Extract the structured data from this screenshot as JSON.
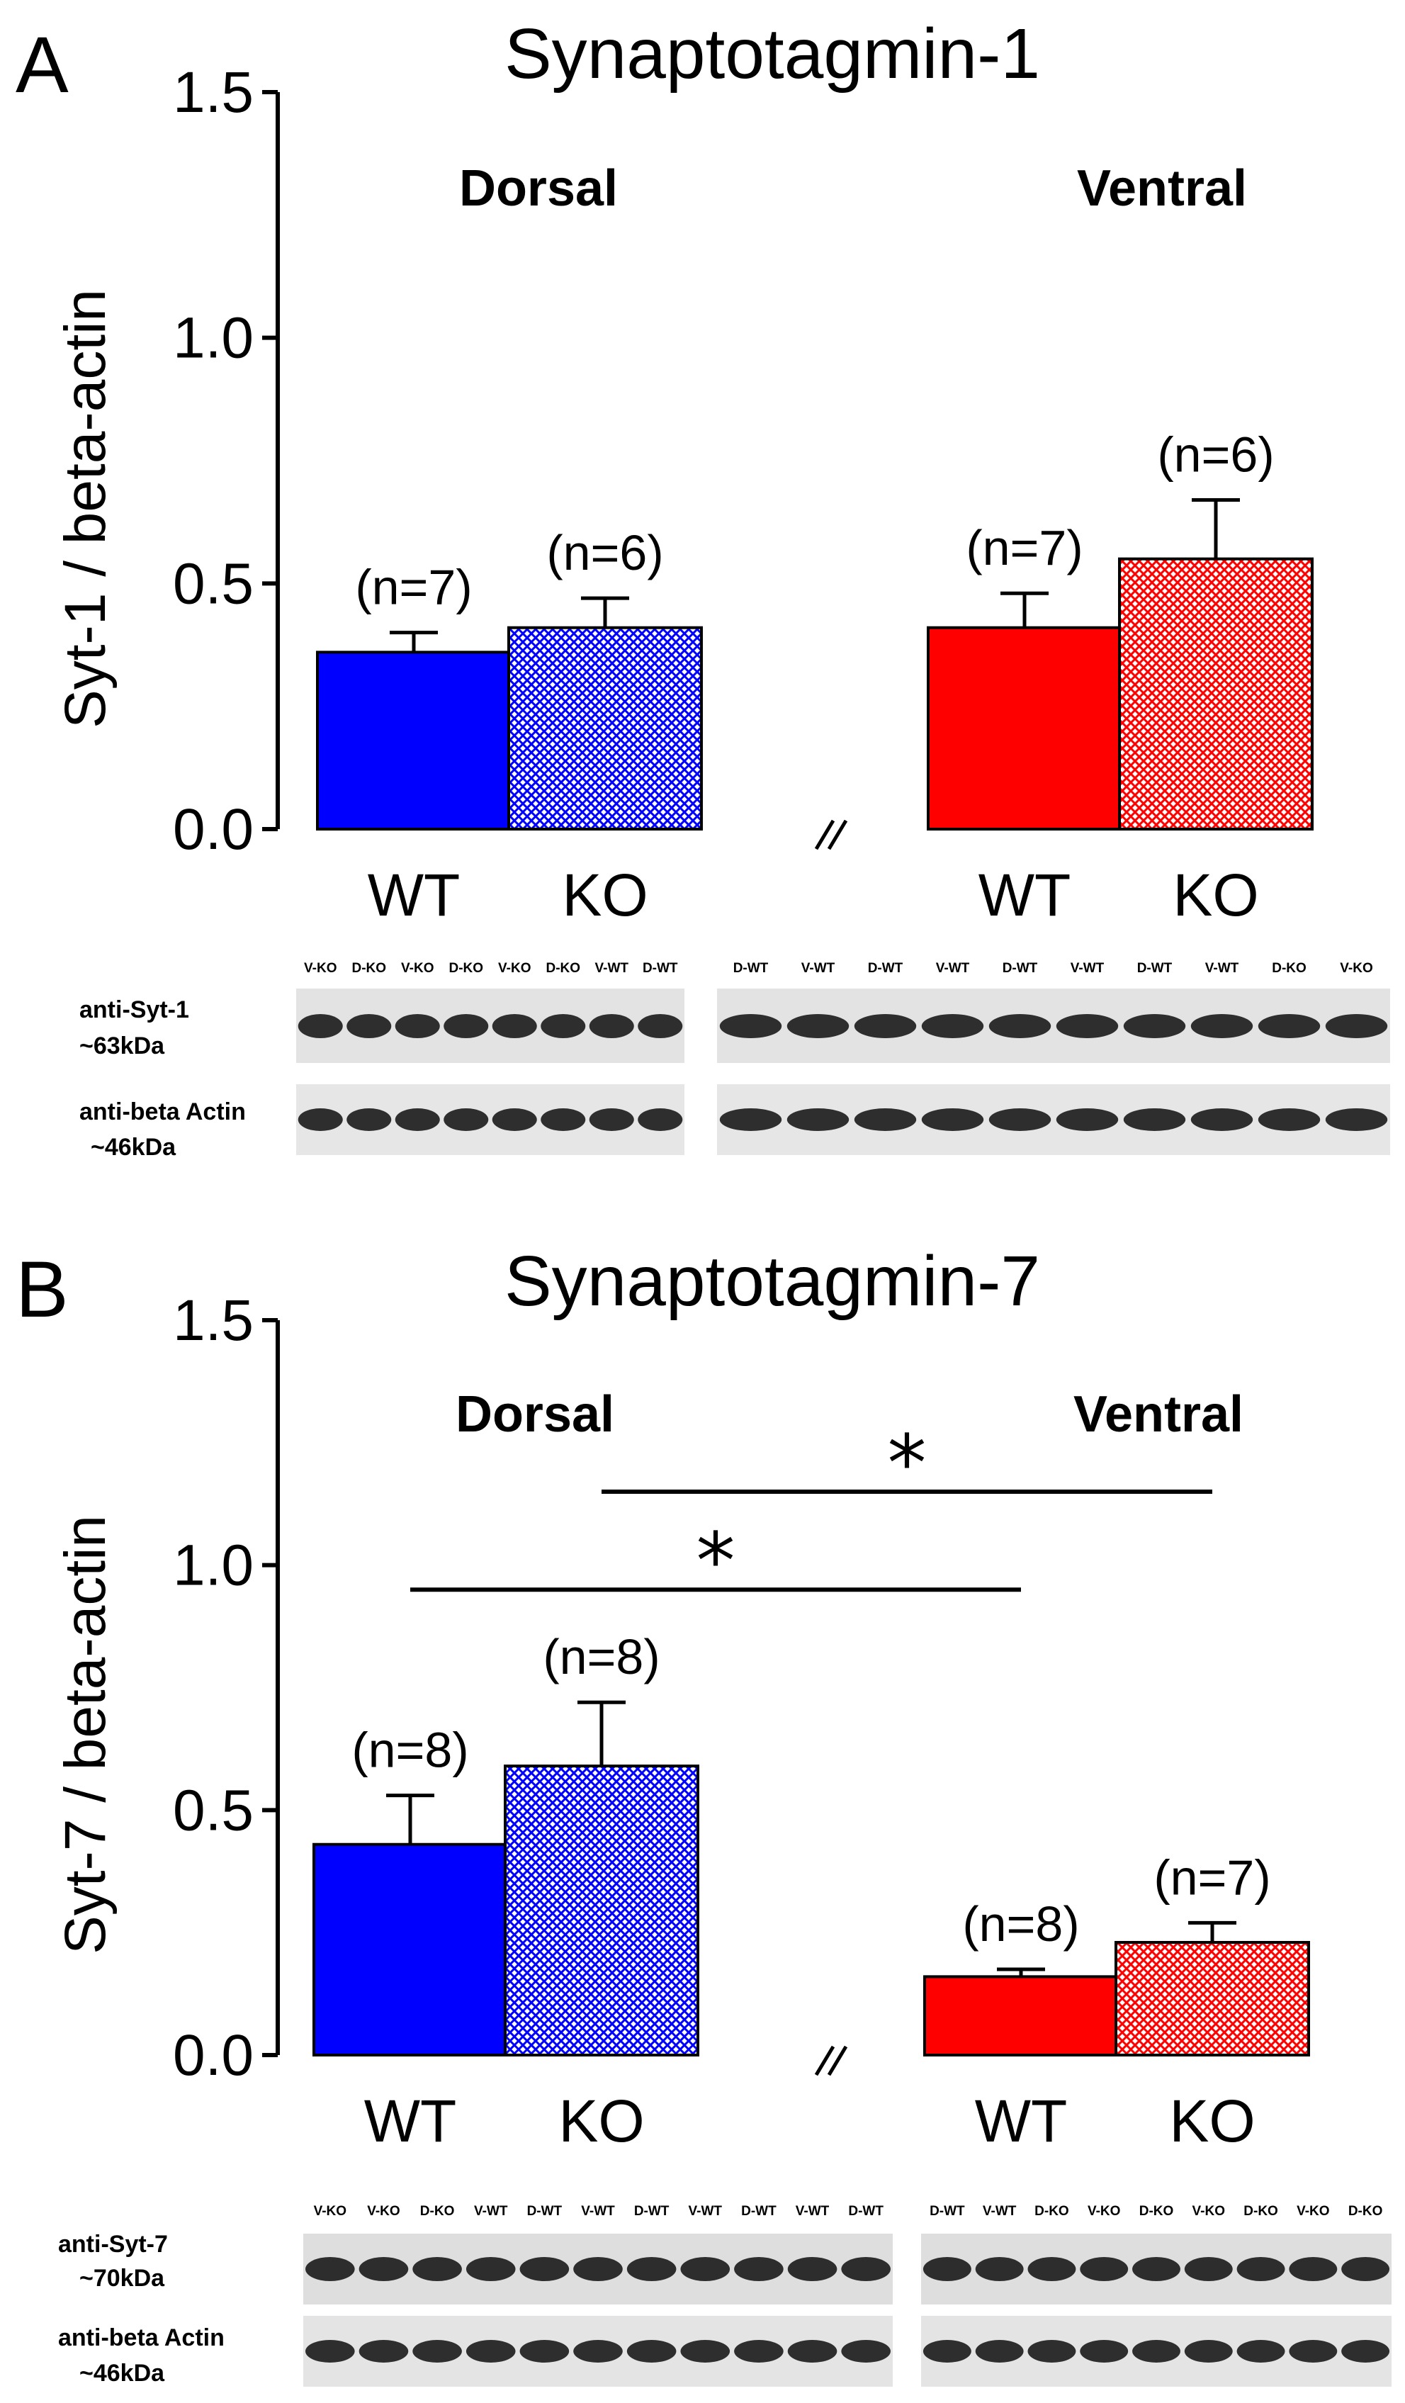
{
  "chart_data": [
    {
      "panel": "A",
      "type": "bar",
      "title": "Synaptotagmin-1",
      "ylabel": "Syt-1 / beta-actin",
      "xlabel": "",
      "ylim": [
        0,
        1.5
      ],
      "yticks": [
        "0.0",
        "0.5",
        "1.0",
        "1.5"
      ],
      "group_labels": [
        "Dorsal",
        "Ventral"
      ],
      "axis_break": "//",
      "categories": [
        "WT",
        "KO",
        "WT",
        "KO"
      ],
      "groups": [
        "Dorsal",
        "Dorsal",
        "Ventral",
        "Ventral"
      ],
      "values": [
        0.36,
        0.41,
        0.41,
        0.55
      ],
      "errors": [
        0.04,
        0.06,
        0.07,
        0.12
      ],
      "n_labels": [
        "(n=7)",
        "(n=6)",
        "(n=7)",
        "(n=6)"
      ],
      "colors": [
        "#0000ff",
        "#0000ff",
        "#ff0000",
        "#ff0000"
      ],
      "patterns": [
        "solid",
        "crosshatch",
        "solid",
        "crosshatch"
      ],
      "significance": [],
      "blots": {
        "left": {
          "lanes": [
            "V-KO",
            "D-KO",
            "V-KO",
            "D-KO",
            "V-KO",
            "D-KO",
            "V-WT",
            "D-WT"
          ]
        },
        "right": {
          "lanes": [
            "D-WT",
            "V-WT",
            "D-WT",
            "V-WT",
            "D-WT",
            "V-WT",
            "D-WT",
            "V-WT",
            "D-KO",
            "V-KO"
          ]
        },
        "rows": [
          {
            "label_line1": "anti-Syt-1",
            "label_line2": "~63kDa"
          },
          {
            "label_line1": "anti-beta Actin",
            "label_line2": "~46kDa"
          }
        ]
      }
    },
    {
      "panel": "B",
      "type": "bar",
      "title": "Synaptotagmin-7",
      "ylabel": "Syt-7 / beta-actin",
      "xlabel": "",
      "ylim": [
        0,
        1.5
      ],
      "yticks": [
        "0.0",
        "0.5",
        "1.0",
        "1.5"
      ],
      "group_labels": [
        "Dorsal",
        "Ventral"
      ],
      "axis_break": "//",
      "categories": [
        "WT",
        "KO",
        "WT",
        "KO"
      ],
      "groups": [
        "Dorsal",
        "Dorsal",
        "Ventral",
        "Ventral"
      ],
      "values": [
        0.43,
        0.59,
        0.16,
        0.23
      ],
      "errors": [
        0.1,
        0.13,
        0.015,
        0.04
      ],
      "n_labels": [
        "(n=8)",
        "(n=8)",
        "(n=8)",
        "(n=7)"
      ],
      "colors": [
        "#0000ff",
        "#0000ff",
        "#ff0000",
        "#ff0000"
      ],
      "patterns": [
        "solid",
        "crosshatch",
        "solid",
        "crosshatch"
      ],
      "significance": [
        {
          "from": 0,
          "to": 2,
          "y": 0.95,
          "label": "*"
        },
        {
          "from": 1,
          "to": 3,
          "y": 1.15,
          "label": "*"
        }
      ],
      "blots": {
        "left": {
          "lanes": [
            "V-KO",
            "V-KO",
            "D-KO",
            "V-WT",
            "D-WT",
            "V-WT",
            "D-WT",
            "V-WT",
            "D-WT",
            "V-WT",
            "D-WT"
          ]
        },
        "right": {
          "lanes": [
            "D-WT",
            "V-WT",
            "D-KO",
            "V-KO",
            "D-KO",
            "V-KO",
            "D-KO",
            "V-KO",
            "D-KO"
          ]
        },
        "rows": [
          {
            "label_line1": "anti-Syt-7",
            "label_line2": "~70kDa"
          },
          {
            "label_line1": "anti-beta Actin",
            "label_line2": "~46kDa"
          }
        ]
      }
    }
  ]
}
